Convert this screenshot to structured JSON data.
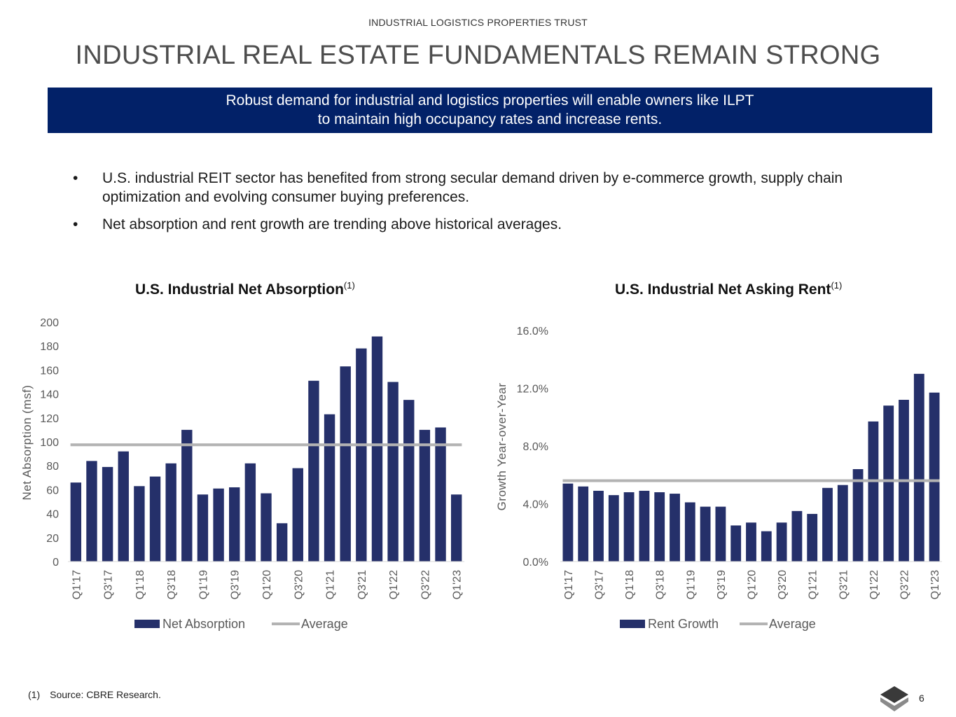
{
  "header": {
    "company": "INDUSTRIAL LOGISTICS PROPERTIES TRUST",
    "title": "INDUSTRIAL REAL ESTATE FUNDAMENTALS REMAIN STRONG"
  },
  "banner": {
    "line1": "Robust demand for industrial and logistics properties will enable owners like ILPT",
    "line2": "to maintain high occupancy rates and increase rents."
  },
  "bullets": [
    {
      "symbol": "•",
      "text": "U.S. industrial REIT sector has benefited from strong secular demand driven by e-commerce growth, supply chain optimization and evolving consumer buying preferences."
    },
    {
      "symbol": "•",
      "text": "Net absorption and rent growth are trending above historical averages."
    }
  ],
  "footer": {
    "footnote_num": "(1)",
    "footnote_text": "Source: CBRE Research.",
    "page": "6"
  },
  "colors": {
    "bar": "#25306a",
    "average": "#b3b3b3",
    "banner": "#022168"
  },
  "chart_data": [
    {
      "type": "bar",
      "title": "U.S. Industrial Net Absorption",
      "title_sup": "(1)",
      "ylabel": "Net Absorption (msf)",
      "ylim": [
        0,
        200
      ],
      "yticks": [
        0,
        20,
        40,
        60,
        80,
        100,
        120,
        140,
        160,
        180,
        200
      ],
      "ytick_labels": [
        "0",
        "20",
        "40",
        "60",
        "80",
        "100",
        "120",
        "140",
        "160",
        "180",
        "200"
      ],
      "categories": [
        "Q1'17",
        "Q2'17",
        "Q3'17",
        "Q4'17",
        "Q1'18",
        "Q2'18",
        "Q3'18",
        "Q4'18",
        "Q1'19",
        "Q2'19",
        "Q3'19",
        "Q4'19",
        "Q1'20",
        "Q2'20",
        "Q3'20",
        "Q4'20",
        "Q1'21",
        "Q2'21",
        "Q3'21",
        "Q4'21",
        "Q1'22",
        "Q2'22",
        "Q3'22",
        "Q4'22",
        "Q1'23"
      ],
      "shown_tick_labels": [
        "Q1'17",
        "Q3'17",
        "Q1'18",
        "Q3'18",
        "Q1'19",
        "Q3'19",
        "Q1'20",
        "Q3'20",
        "Q1'21",
        "Q3'21",
        "Q1'22",
        "Q3'22",
        "Q1'23"
      ],
      "series": [
        {
          "name": "Net Absorption",
          "values": [
            66,
            84,
            79,
            92,
            63,
            71,
            82,
            110,
            56,
            61,
            62,
            82,
            57,
            32,
            78,
            151,
            123,
            163,
            178,
            188,
            150,
            135,
            110,
            112,
            56
          ]
        },
        {
          "name": "Average",
          "value": 97.5
        }
      ],
      "legend": [
        "Net Absorption",
        "Average"
      ]
    },
    {
      "type": "bar",
      "title": "U.S. Industrial Net Asking Rent",
      "title_sup": "(1)",
      "ylabel": "Growth Year-over-Year",
      "ylim": [
        0,
        16
      ],
      "yticks": [
        0,
        4,
        8,
        12,
        16
      ],
      "ytick_labels": [
        "0.0%",
        "4.0%",
        "8.0%",
        "12.0%",
        "16.0%"
      ],
      "categories": [
        "Q1'17",
        "Q2'17",
        "Q3'17",
        "Q4'17",
        "Q1'18",
        "Q2'18",
        "Q3'18",
        "Q4'18",
        "Q1'19",
        "Q2'19",
        "Q3'19",
        "Q4'19",
        "Q1'20",
        "Q2'20",
        "Q3'20",
        "Q4'20",
        "Q1'21",
        "Q2'21",
        "Q3'21",
        "Q4'21",
        "Q1'22",
        "Q2'22",
        "Q3'22",
        "Q4'22",
        "Q1'23"
      ],
      "shown_tick_labels": [
        "Q1'17",
        "Q3'17",
        "Q1'18",
        "Q3'18",
        "Q1'19",
        "Q3'19",
        "Q1'20",
        "Q3'20",
        "Q1'21",
        "Q3'21",
        "Q1'22",
        "Q3'22",
        "Q1'23"
      ],
      "series": [
        {
          "name": "Rent Growth",
          "values": [
            5.4,
            5.2,
            4.9,
            4.6,
            4.8,
            4.9,
            4.8,
            4.7,
            4.1,
            3.8,
            3.8,
            2.5,
            2.7,
            2.1,
            2.7,
            3.5,
            3.3,
            5.1,
            5.3,
            6.4,
            9.7,
            10.8,
            11.2,
            13.0,
            11.7
          ]
        },
        {
          "name": "Average",
          "value": 5.6
        }
      ],
      "legend": [
        "Rent Growth",
        "Average"
      ]
    }
  ]
}
